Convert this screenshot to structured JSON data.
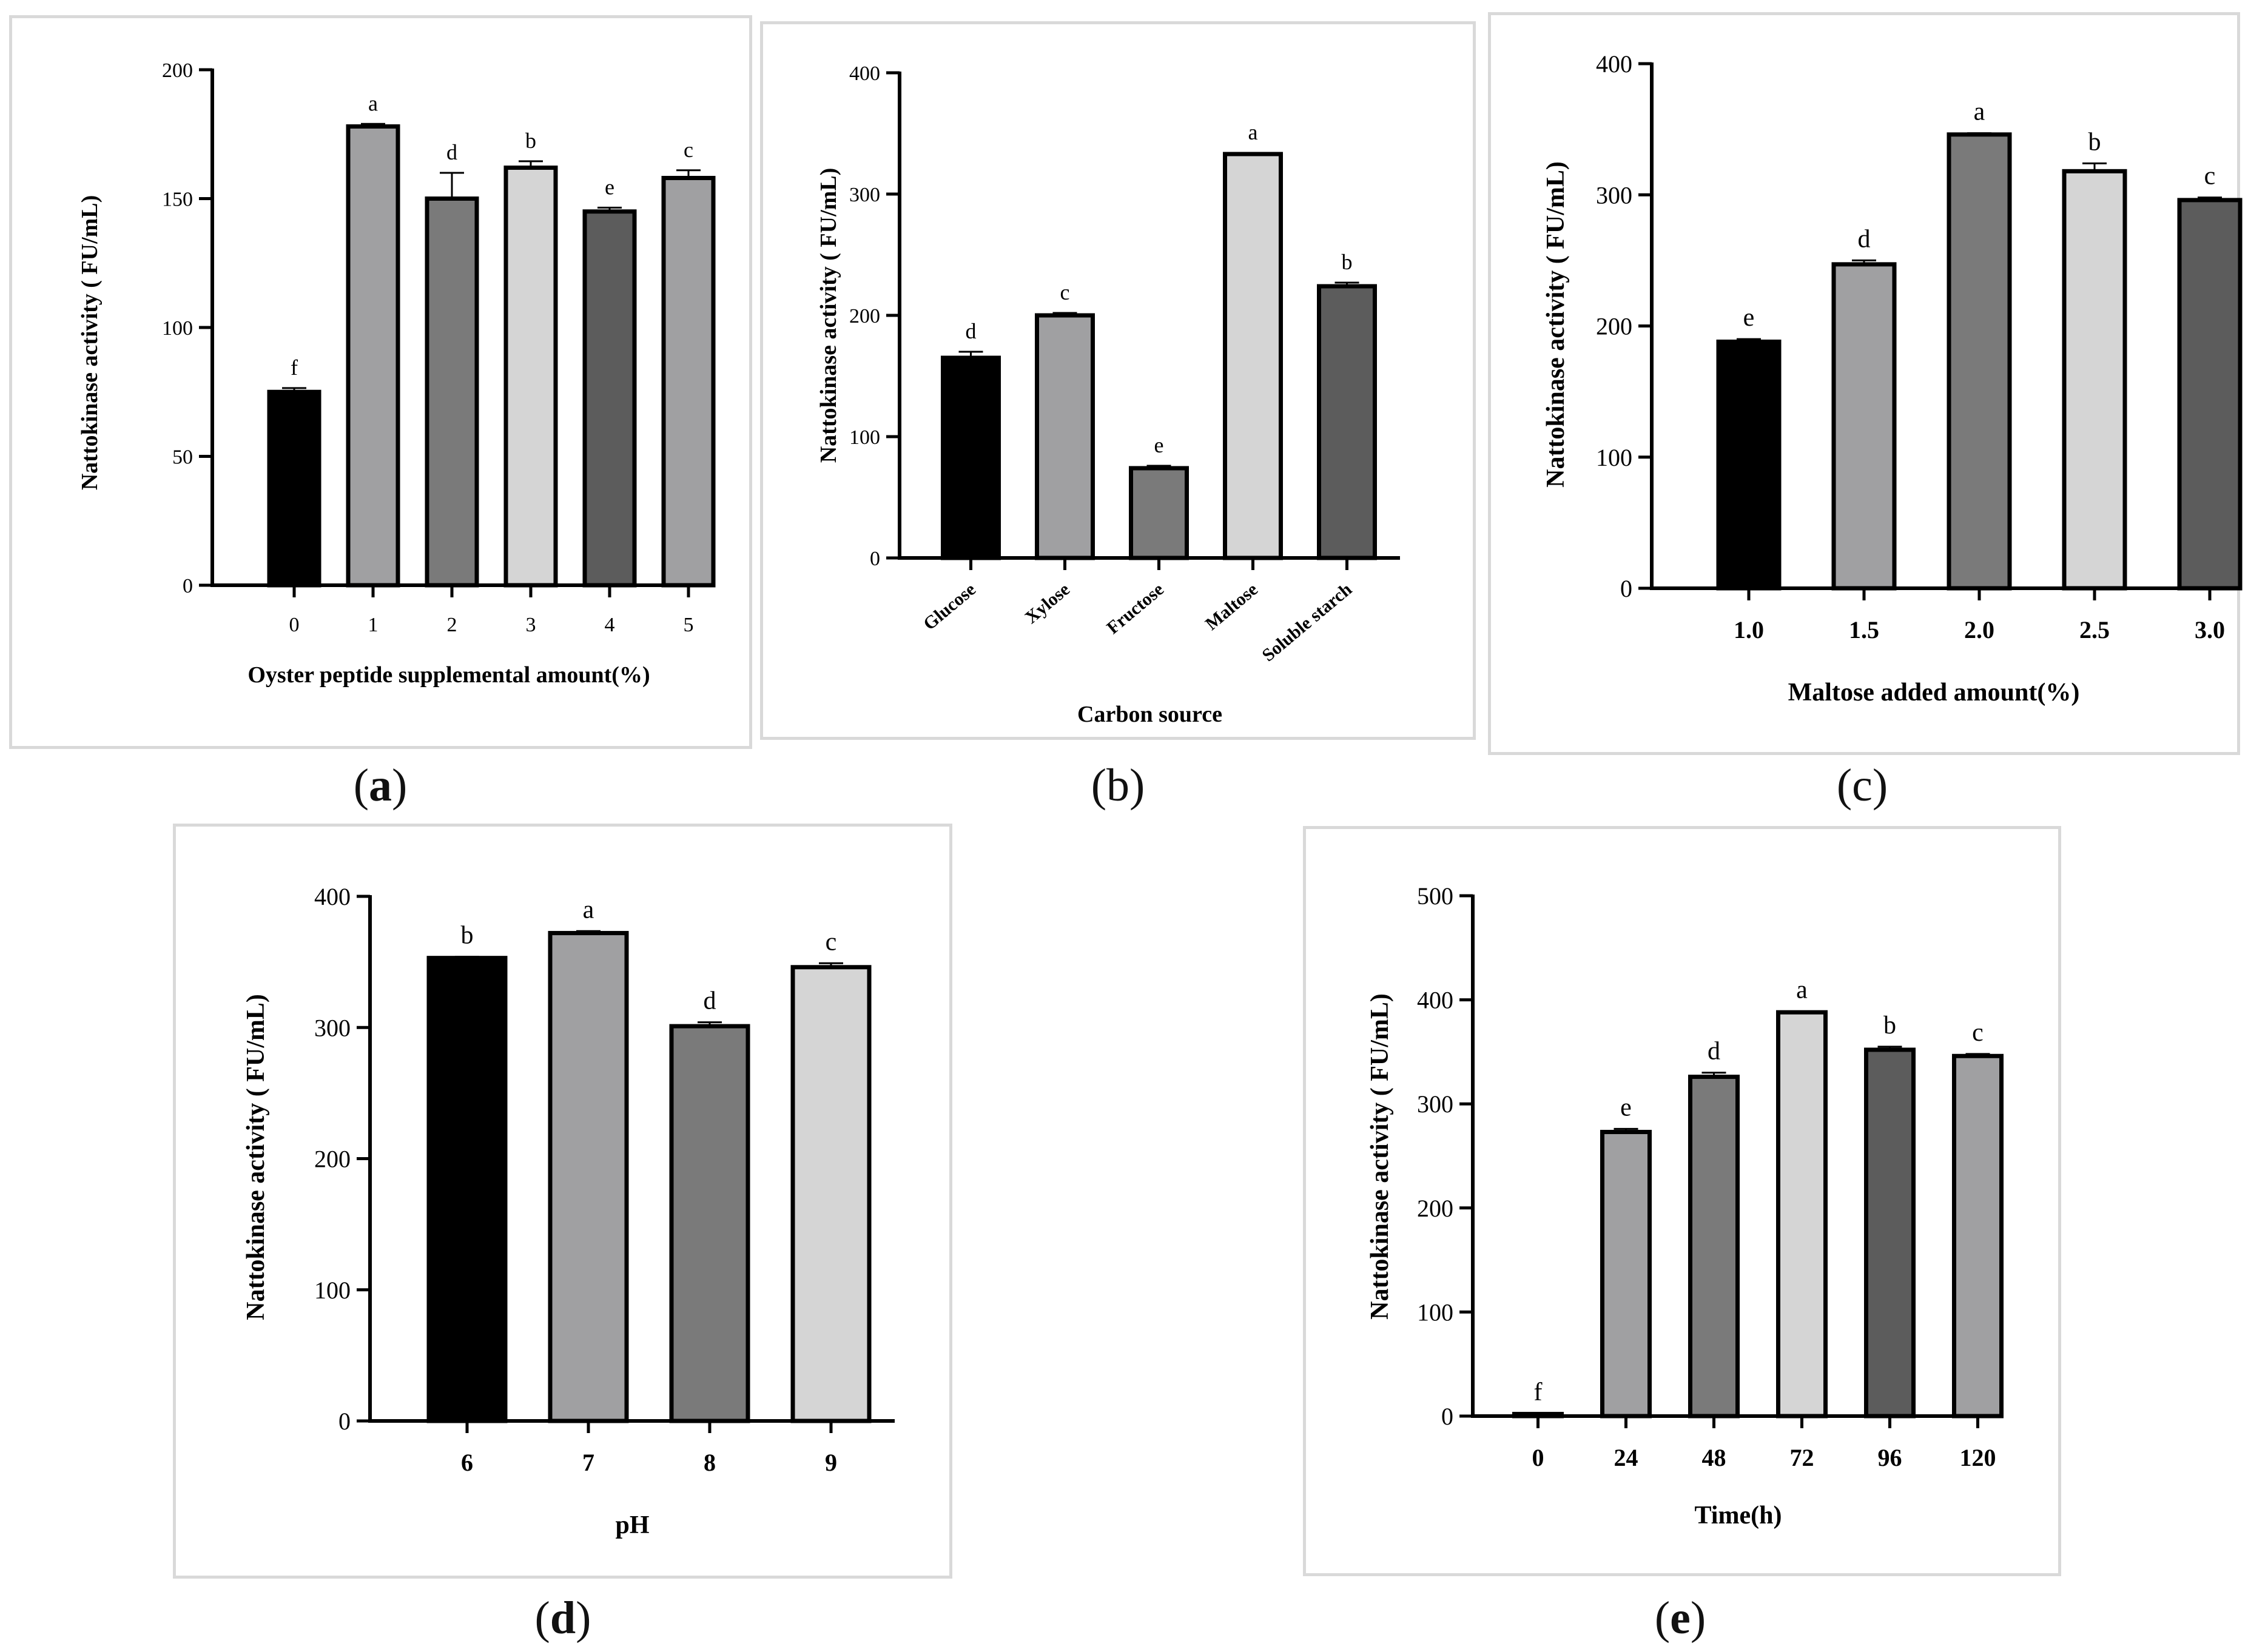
{
  "chart_data": [
    {
      "id": "a",
      "type": "bar",
      "caption": "a",
      "ylabel": "Nattokinase activity ( FU/mL)",
      "xlabel": "Oyster peptide supplemental amount(%)",
      "ylim": [
        0,
        200
      ],
      "yticks": [
        0,
        50,
        100,
        150,
        200
      ],
      "categories": [
        "0",
        "1",
        "2",
        "3",
        "4",
        "5"
      ],
      "values": [
        75,
        178,
        150,
        162,
        145,
        158
      ],
      "errors": [
        1.5,
        1,
        10,
        2.5,
        1.5,
        3
      ],
      "letters": [
        "f",
        "a",
        "d",
        "b",
        "e",
        "c"
      ],
      "colors": [
        "#000000",
        "#a0a0a2",
        "#7a7a7a",
        "#d5d5d5",
        "#5c5c5c",
        "#a0a0a2"
      ],
      "rotate_ticks": false
    },
    {
      "id": "b",
      "type": "bar",
      "caption": "b",
      "ylabel": "Nattokinase activity ( FU/mL)",
      "xlabel": "Carbon source",
      "ylim": [
        0,
        400
      ],
      "yticks": [
        0,
        100,
        200,
        300,
        400
      ],
      "categories": [
        "Glucose",
        "Xylose",
        "Fructose",
        "Maltose",
        "Soluble starch"
      ],
      "values": [
        165,
        200,
        74,
        333,
        224
      ],
      "errors": [
        5,
        2,
        2,
        1,
        3
      ],
      "letters": [
        "d",
        "c",
        "e",
        "a",
        "b"
      ],
      "colors": [
        "#000000",
        "#a0a0a2",
        "#7a7a7a",
        "#d5d5d5",
        "#5c5c5c"
      ],
      "rotate_ticks": true
    },
    {
      "id": "c",
      "type": "bar",
      "caption": "c",
      "ylabel": "Nattokinase activity ( FU/mL)",
      "xlabel": "Maltose added amount(%)",
      "ylim": [
        0,
        400
      ],
      "yticks": [
        0,
        100,
        200,
        300,
        400
      ],
      "categories": [
        "1.0",
        "1.5",
        "2.0",
        "2.5",
        "3.0"
      ],
      "values": [
        188,
        247,
        346,
        318,
        296
      ],
      "errors": [
        2,
        3,
        1,
        6,
        2
      ],
      "letters": [
        "e",
        "d",
        "a",
        "b",
        "c"
      ],
      "colors": [
        "#000000",
        "#a0a0a2",
        "#7a7a7a",
        "#d5d5d5",
        "#5c5c5c"
      ],
      "rotate_ticks": false
    },
    {
      "id": "d",
      "type": "bar",
      "caption": "d",
      "ylabel": "Nattokinase activity ( FU/mL)",
      "xlabel": "pH",
      "ylim": [
        0,
        400
      ],
      "yticks": [
        0,
        100,
        200,
        300,
        400
      ],
      "categories": [
        "6",
        "7",
        "8",
        "9"
      ],
      "values": [
        353,
        372,
        301,
        346
      ],
      "errors": [
        1,
        1.5,
        3,
        3
      ],
      "letters": [
        "b",
        "a",
        "d",
        "c"
      ],
      "colors": [
        "#000000",
        "#a0a0a2",
        "#7a7a7a",
        "#d5d5d5"
      ],
      "rotate_ticks": false
    },
    {
      "id": "e",
      "type": "bar",
      "caption": "e",
      "ylabel": "Nattokinase activity ( FU/mL)",
      "xlabel": "Time(h)",
      "ylim": [
        0,
        500
      ],
      "yticks": [
        0,
        100,
        200,
        300,
        400,
        500
      ],
      "categories": [
        "0",
        "24",
        "48",
        "72",
        "96",
        "120"
      ],
      "values": [
        2,
        273,
        326,
        388,
        352,
        346
      ],
      "errors": [
        0.5,
        3,
        4,
        1,
        3,
        2
      ],
      "letters": [
        "f",
        "e",
        "d",
        "a",
        "b",
        "c"
      ],
      "colors": [
        "#000000",
        "#a0a0a2",
        "#7a7a7a",
        "#d5d5d5",
        "#5c5c5c",
        "#a0a0a2"
      ],
      "rotate_ticks": false
    }
  ]
}
